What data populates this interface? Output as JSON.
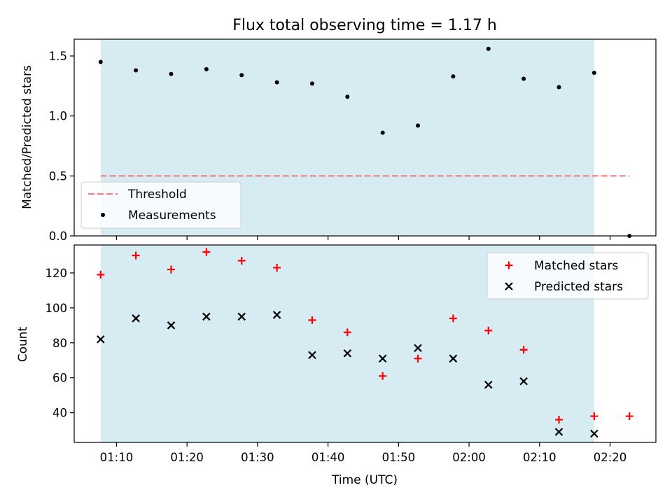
{
  "chart_data": [
    {
      "type": "scatter",
      "title": "Flux total observing time = 1.17 h",
      "xlabel": "",
      "ylabel": "Matched/Predicted stars",
      "xlim": [
        "01:04:00",
        "02:26:30"
      ],
      "ylim": [
        0,
        1.64
      ],
      "yticks": [
        0.0,
        0.5,
        1.0,
        1.5
      ],
      "ytick_labels": [
        "0.0",
        "0.5",
        "1.0",
        "1.5"
      ],
      "observing_window": [
        "01:07:45",
        "02:17:45"
      ],
      "legend": {
        "position": "lower-left",
        "entries": [
          "Threshold",
          "Measurements"
        ]
      },
      "series": [
        {
          "name": "Threshold",
          "style": "dashed-line",
          "color": "#f08080",
          "x": [
            "01:07:45",
            "02:22:45"
          ],
          "y": [
            0.5,
            0.5
          ]
        },
        {
          "name": "Measurements",
          "style": "dot",
          "color": "#000000",
          "x": [
            "01:07:45",
            "01:12:45",
            "01:17:45",
            "01:22:45",
            "01:27:45",
            "01:32:45",
            "01:37:45",
            "01:42:45",
            "01:47:45",
            "01:52:45",
            "01:57:45",
            "02:02:45",
            "02:07:45",
            "02:12:45",
            "02:17:45",
            "02:22:45"
          ],
          "y": [
            1.45,
            1.38,
            1.35,
            1.39,
            1.34,
            1.28,
            1.27,
            1.16,
            0.86,
            0.92,
            1.33,
            1.56,
            1.31,
            1.24,
            1.36,
            0.0
          ]
        }
      ]
    },
    {
      "type": "scatter",
      "title": "",
      "xlabel": "Time (UTC)",
      "ylabel": "Count",
      "xlim": [
        "01:04:00",
        "02:26:30"
      ],
      "ylim": [
        23,
        136
      ],
      "yticks": [
        40,
        60,
        80,
        100,
        120
      ],
      "ytick_labels": [
        "40",
        "60",
        "80",
        "100",
        "120"
      ],
      "xticks": [
        "01:10:00",
        "01:20:00",
        "01:30:00",
        "01:40:00",
        "01:50:00",
        "02:00:00",
        "02:10:00",
        "02:20:00"
      ],
      "xtick_labels": [
        "01:10",
        "01:20",
        "01:30",
        "01:40",
        "01:50",
        "02:00",
        "02:10",
        "02:20"
      ],
      "observing_window": [
        "01:07:45",
        "02:17:45"
      ],
      "legend": {
        "position": "top-right",
        "entries": [
          "Matched stars",
          "Predicted stars"
        ]
      },
      "series": [
        {
          "name": "Matched stars",
          "style": "plus",
          "color": "#ff0000",
          "x": [
            "01:07:45",
            "01:12:45",
            "01:17:45",
            "01:22:45",
            "01:27:45",
            "01:32:45",
            "01:37:45",
            "01:42:45",
            "01:47:45",
            "01:52:45",
            "01:57:45",
            "02:02:45",
            "02:07:45",
            "02:12:45",
            "02:17:45",
            "02:22:45"
          ],
          "y": [
            119,
            130,
            122,
            132,
            127,
            123,
            93,
            86,
            61,
            71,
            94,
            87,
            76,
            36,
            38,
            38
          ]
        },
        {
          "name": "Predicted stars",
          "style": "x",
          "color": "#000000",
          "x": [
            "01:07:45",
            "01:12:45",
            "01:17:45",
            "01:22:45",
            "01:27:45",
            "01:32:45",
            "01:37:45",
            "01:42:45",
            "01:47:45",
            "01:52:45",
            "01:57:45",
            "02:02:45",
            "02:07:45",
            "02:12:45",
            "02:17:45"
          ],
          "y": [
            82,
            94,
            90,
            95,
            95,
            96,
            73,
            74,
            71,
            77,
            71,
            56,
            58,
            29,
            28
          ]
        }
      ]
    }
  ],
  "colors": {
    "observing_window_fill": "#add8e6"
  }
}
